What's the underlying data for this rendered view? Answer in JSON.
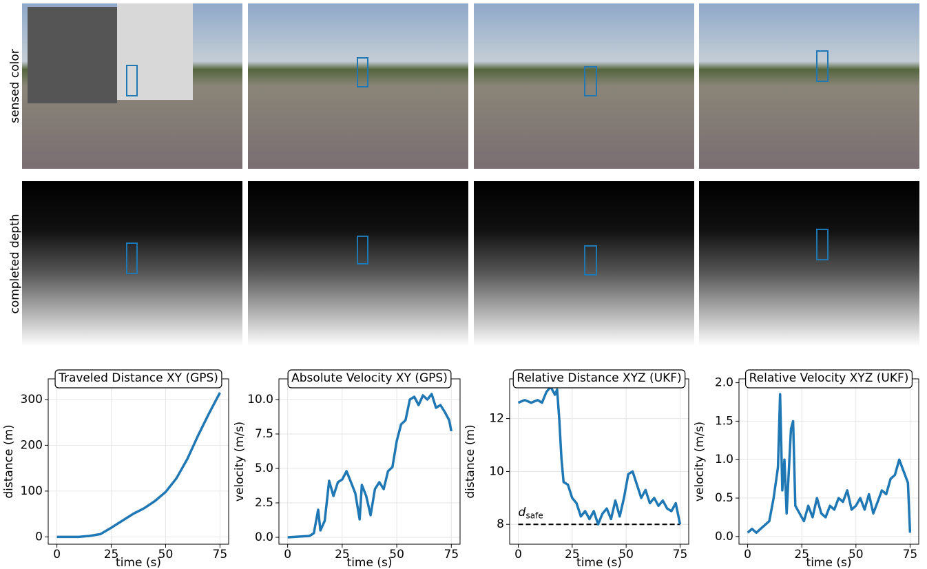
{
  "row_labels": [
    "sensed color",
    "completed depth"
  ],
  "chart_data": [
    {
      "type": "line",
      "title": "Traveled Distance XY (GPS)",
      "xlabel": "time (s)",
      "ylabel": "distance (m)",
      "x": [
        0,
        5,
        10,
        15,
        20,
        25,
        30,
        35,
        40,
        45,
        50,
        55,
        60,
        65,
        70,
        75
      ],
      "values": [
        0,
        0,
        0,
        2,
        6,
        20,
        35,
        50,
        62,
        78,
        98,
        128,
        170,
        222,
        270,
        315
      ],
      "color": "#1f77b4",
      "xlim": [
        -4,
        79
      ],
      "ylim": [
        -16,
        345
      ],
      "xticks": [
        0,
        25,
        50,
        75
      ],
      "yticks": [
        0,
        100,
        200,
        300
      ],
      "grid": true
    },
    {
      "type": "line",
      "title": "Absolute Velocity XY (GPS)",
      "xlabel": "time (s)",
      "ylabel": "velocity (m/s)",
      "x": [
        0,
        5,
        10,
        12,
        14,
        15,
        17,
        19,
        21,
        23,
        25,
        27,
        29,
        31,
        33,
        34,
        36,
        38,
        40,
        42,
        44,
        46,
        48,
        50,
        52,
        54,
        56,
        58,
        60,
        62,
        64,
        66,
        68,
        70,
        72,
        74,
        75
      ],
      "values": [
        0,
        0.05,
        0.1,
        0.3,
        2.0,
        0.5,
        1.2,
        4.1,
        3.0,
        4.0,
        4.2,
        4.8,
        4.0,
        3.2,
        1.3,
        3.8,
        3.0,
        1.6,
        3.5,
        4.0,
        3.5,
        4.8,
        5.1,
        7.0,
        8.2,
        8.5,
        10.0,
        10.2,
        9.6,
        10.3,
        10.0,
        10.4,
        9.4,
        9.6,
        9.1,
        8.5,
        7.7
      ],
      "color": "#1f77b4",
      "xlim": [
        -4,
        79
      ],
      "ylim": [
        -0.5,
        11.5
      ],
      "xticks": [
        0,
        25,
        50,
        75
      ],
      "yticks": [
        {
          "value": 0,
          "label": "0.0"
        },
        {
          "value": 2.5,
          "label": "2.5"
        },
        {
          "value": 5,
          "label": "5.0"
        },
        {
          "value": 7.5,
          "label": "7.5"
        },
        {
          "value": 10,
          "label": "10.0"
        }
      ],
      "grid": true
    },
    {
      "type": "line",
      "title": "Relative Distance XYZ (UKF)",
      "xlabel": "time (s)",
      "ylabel": "distance (m)",
      "x": [
        0,
        3,
        6,
        9,
        11,
        13,
        15,
        17,
        18,
        19,
        20,
        21,
        23,
        25,
        27,
        29,
        31,
        33,
        35,
        37,
        39,
        41,
        43,
        45,
        47,
        49,
        51,
        53,
        55,
        57,
        59,
        61,
        63,
        65,
        67,
        69,
        71,
        73,
        75
      ],
      "values": [
        12.6,
        12.7,
        12.6,
        12.7,
        12.6,
        13.0,
        13.2,
        12.9,
        13.1,
        12.0,
        10.5,
        9.6,
        9.5,
        9.0,
        8.8,
        8.3,
        8.5,
        8.2,
        8.5,
        8.0,
        8.4,
        8.6,
        8.2,
        8.9,
        8.3,
        9.0,
        9.9,
        10.0,
        9.5,
        9.0,
        9.3,
        8.8,
        9.0,
        8.7,
        8.9,
        8.6,
        8.5,
        8.8,
        8.0
      ],
      "color": "#1f77b4",
      "xlim": [
        -4,
        79
      ],
      "ylim": [
        7.25,
        13.5
      ],
      "xticks": [
        0,
        25,
        50,
        75
      ],
      "yticks": [
        8,
        10,
        12
      ],
      "grid": true,
      "reference_line": 8,
      "reference_label": {
        "main": "d",
        "sub": "safe"
      }
    },
    {
      "type": "line",
      "title": "Relative Velocity XYZ (UKF)",
      "xlabel": "time (s)",
      "ylabel": "velocity (m/s)",
      "x": [
        0,
        2,
        4,
        6,
        8,
        10,
        12,
        14,
        15,
        16,
        17,
        18,
        20,
        21,
        22,
        24,
        26,
        28,
        30,
        32,
        34,
        36,
        38,
        40,
        42,
        44,
        46,
        48,
        50,
        52,
        54,
        56,
        58,
        60,
        62,
        64,
        66,
        68,
        70,
        72,
        74,
        75
      ],
      "values": [
        0.05,
        0.1,
        0.05,
        0.1,
        0.15,
        0.2,
        0.5,
        0.9,
        1.85,
        0.6,
        1.0,
        0.3,
        1.4,
        1.5,
        0.4,
        0.3,
        0.2,
        0.4,
        0.25,
        0.5,
        0.3,
        0.25,
        0.4,
        0.35,
        0.5,
        0.45,
        0.6,
        0.35,
        0.4,
        0.5,
        0.35,
        0.55,
        0.3,
        0.45,
        0.6,
        0.55,
        0.75,
        0.8,
        1.0,
        0.85,
        0.7,
        0.05
      ],
      "color": "#1f77b4",
      "xlim": [
        -4,
        79
      ],
      "ylim": [
        -0.1,
        2.05
      ],
      "xticks": [
        0,
        25,
        50,
        75
      ],
      "yticks": [
        {
          "value": 0,
          "label": "0.0"
        },
        {
          "value": 0.5,
          "label": "0.5"
        },
        {
          "value": 1,
          "label": "1.0"
        },
        {
          "value": 1.5,
          "label": "1.5"
        },
        {
          "value": 2,
          "label": "2.0"
        }
      ],
      "grid": true
    }
  ]
}
